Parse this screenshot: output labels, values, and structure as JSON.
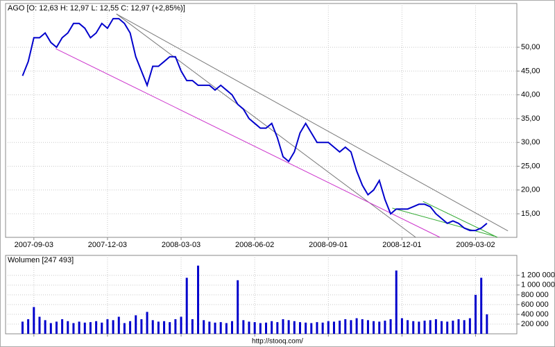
{
  "chart_data": [
    {
      "type": "line",
      "title": "AGO [O: 12,63  H: 12,97  L: 12,55  C: 12,97 (+2,85%)]",
      "x": [
        "2007-08-20",
        "2007-08-27",
        "2007-09-03",
        "2007-09-10",
        "2007-09-17",
        "2007-09-24",
        "2007-10-01",
        "2007-10-08",
        "2007-10-15",
        "2007-10-22",
        "2007-10-29",
        "2007-11-05",
        "2007-11-12",
        "2007-11-19",
        "2007-11-26",
        "2007-12-03",
        "2007-12-10",
        "2007-12-17",
        "2007-12-24",
        "2007-12-31",
        "2008-01-07",
        "2008-01-14",
        "2008-01-21",
        "2008-01-28",
        "2008-02-04",
        "2008-02-11",
        "2008-02-18",
        "2008-02-25",
        "2008-03-03",
        "2008-03-10",
        "2008-03-17",
        "2008-03-24",
        "2008-03-31",
        "2008-04-07",
        "2008-04-14",
        "2008-04-21",
        "2008-04-28",
        "2008-05-05",
        "2008-05-12",
        "2008-05-19",
        "2008-05-26",
        "2008-06-02",
        "2008-06-09",
        "2008-06-16",
        "2008-06-23",
        "2008-06-30",
        "2008-07-07",
        "2008-07-14",
        "2008-07-21",
        "2008-07-28",
        "2008-08-04",
        "2008-08-11",
        "2008-08-18",
        "2008-08-25",
        "2008-09-01",
        "2008-09-08",
        "2008-09-15",
        "2008-09-22",
        "2008-09-29",
        "2008-10-06",
        "2008-10-13",
        "2008-10-20",
        "2008-10-27",
        "2008-11-03",
        "2008-11-10",
        "2008-11-17",
        "2008-11-24",
        "2008-12-01",
        "2008-12-08",
        "2008-12-15",
        "2008-12-22",
        "2008-12-29",
        "2009-01-05",
        "2009-01-12",
        "2009-01-19",
        "2009-01-26",
        "2009-02-02",
        "2009-02-09",
        "2009-02-16",
        "2009-02-23",
        "2009-03-02",
        "2009-03-09",
        "2009-03-16"
      ],
      "series": [
        {
          "name": "AGO",
          "color": "#0000cc",
          "values": [
            44,
            47,
            52,
            52,
            53,
            51,
            50,
            52,
            53,
            55,
            55,
            54,
            52,
            53,
            55,
            54,
            56,
            56,
            55,
            53,
            48,
            45,
            42,
            46,
            46,
            47,
            48,
            48,
            45,
            43,
            43,
            42,
            42,
            42,
            41,
            42,
            41,
            40,
            38,
            37,
            35,
            34,
            33,
            33,
            34,
            31,
            27,
            26,
            28,
            32,
            34,
            32,
            30,
            30,
            30,
            29,
            28,
            29,
            28,
            24,
            21,
            19,
            20,
            22,
            18,
            15,
            16,
            16,
            16,
            16.5,
            17,
            17,
            16.5,
            15,
            14,
            13,
            13.5,
            13,
            12,
            11.5,
            11.5,
            12,
            13
          ]
        }
      ],
      "xlim": [
        "2007-07-30",
        "2009-04-22"
      ],
      "xticks": [
        "2007-09-03",
        "2007-12-03",
        "2008-03-03",
        "2008-06-02",
        "2008-09-01",
        "2008-12-01",
        "2009-03-02"
      ],
      "ylim": [
        10.05,
        59.2
      ],
      "yticks": [
        {
          "value": 15,
          "label": "15,00"
        },
        {
          "value": 20,
          "label": "20,00"
        },
        {
          "value": 25,
          "label": "25,00"
        },
        {
          "value": 30,
          "label": "30,00"
        },
        {
          "value": 35,
          "label": "35,00"
        },
        {
          "value": 40,
          "label": "40,00"
        },
        {
          "value": 45,
          "label": "45,00"
        },
        {
          "value": 50,
          "label": "50,00"
        }
      ],
      "grid": true,
      "trendlines": [
        {
          "color": "#777777",
          "x": [
            "2007-12-14",
            "2009-04-11"
          ],
          "y": [
            57.0,
            11.4
          ]
        },
        {
          "color": "#777777",
          "x": [
            "2007-12-14",
            "2008-12-18"
          ],
          "y": [
            57.0,
            10.05
          ]
        },
        {
          "color": "#cc33cc",
          "x": [
            "2007-09-30",
            "2009-01-17"
          ],
          "y": [
            49.7,
            10.05
          ]
        },
        {
          "color": "#33aa33",
          "x": [
            "2008-11-19",
            "2009-03-25"
          ],
          "y": [
            16.2,
            10.3
          ]
        },
        {
          "color": "#33aa33",
          "x": [
            "2008-12-27",
            "2009-03-29"
          ],
          "y": [
            17.6,
            10.05
          ]
        }
      ]
    },
    {
      "type": "bar",
      "title": "Wolumen [247 493]",
      "series": [
        {
          "name": "Wolumen",
          "color": "#0000cc",
          "values": [
            250000,
            300000,
            550000,
            350000,
            280000,
            220000,
            250000,
            300000,
            260000,
            220000,
            250000,
            230000,
            240000,
            260000,
            230000,
            300000,
            280000,
            350000,
            220000,
            260000,
            380000,
            300000,
            450000,
            280000,
            250000,
            260000,
            240000,
            300000,
            350000,
            1150000,
            300000,
            1400000,
            280000,
            250000,
            230000,
            240000,
            220000,
            260000,
            1100000,
            280000,
            250000,
            240000,
            220000,
            230000,
            260000,
            240000,
            300000,
            280000,
            260000,
            240000,
            230000,
            220000,
            240000,
            230000,
            260000,
            250000,
            270000,
            300000,
            280000,
            320000,
            300000,
            280000,
            260000,
            250000,
            270000,
            300000,
            1300000,
            320000,
            280000,
            260000,
            250000,
            270000,
            280000,
            300000,
            260000,
            250000,
            270000,
            300000,
            280000,
            320000,
            800000,
            1150000,
            400000
          ]
        }
      ],
      "ylim": [
        0,
        1610000
      ],
      "yticks": [
        {
          "value": 200000,
          "label": "200 000"
        },
        {
          "value": 400000,
          "label": "400 000"
        },
        {
          "value": 600000,
          "label": "600 000"
        },
        {
          "value": 800000,
          "label": "800 000"
        },
        {
          "value": 1000000,
          "label": "1 000 000"
        },
        {
          "value": 1200000,
          "label": "1 200 000"
        }
      ],
      "grid": true
    },
    {
      "type": "footer",
      "text": "http://stooq.com/"
    }
  ]
}
